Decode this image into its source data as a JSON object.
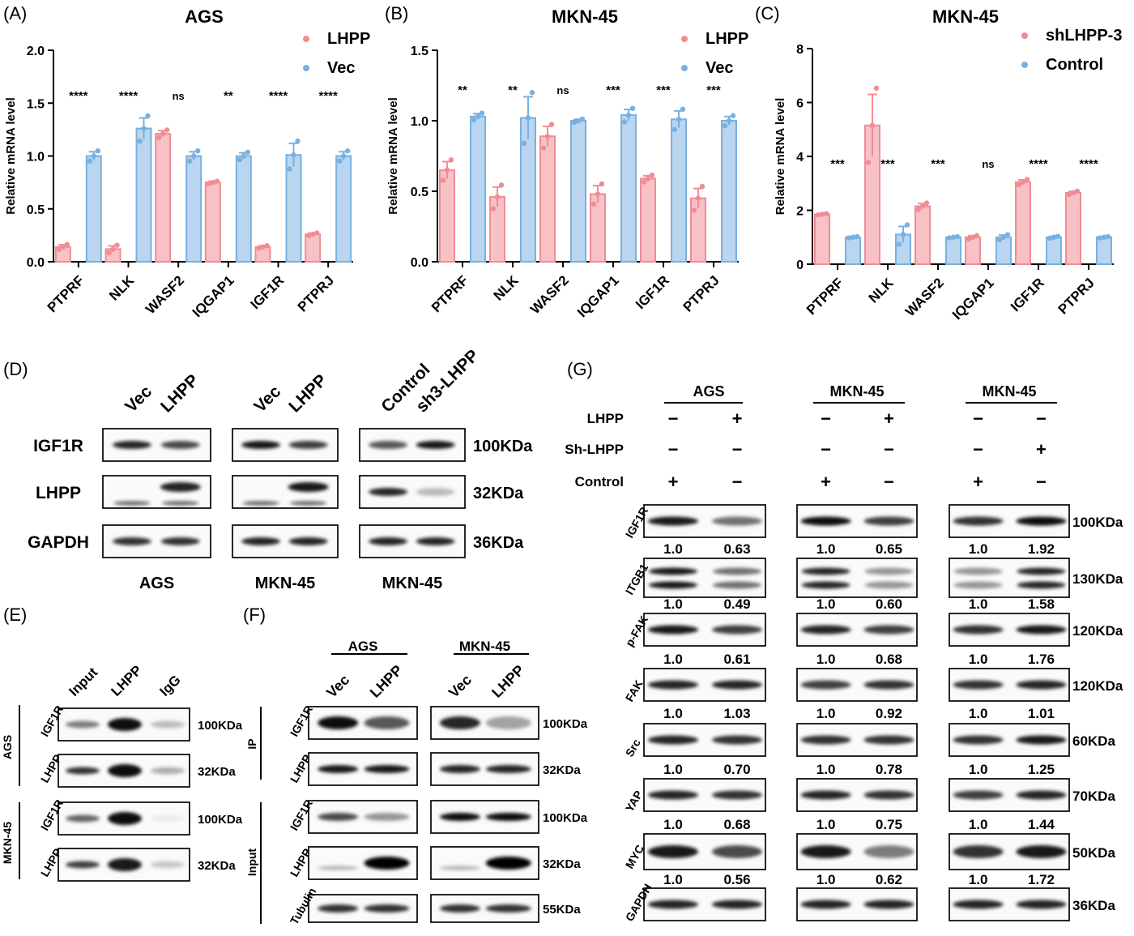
{
  "panels": {
    "A": {
      "letter": "(A)",
      "title": "AGS"
    },
    "B": {
      "letter": "(B)",
      "title": "MKN-45"
    },
    "C": {
      "letter": "(C)",
      "title": "MKN-45"
    },
    "D": {
      "letter": "(D)"
    },
    "E": {
      "letter": "(E)"
    },
    "F": {
      "letter": "(F)"
    },
    "G": {
      "letter": "(G)"
    }
  },
  "chart_data": [
    {
      "type": "bar",
      "title": "AGS",
      "ylabel": "Relative mRNA level",
      "ylim": [
        0,
        2.0
      ],
      "yticks": [
        "0.0",
        "0.5",
        "1.0",
        "1.5",
        "2.0"
      ],
      "categories": [
        "PTPRF",
        "NLK",
        "WASF2",
        "IQGAP1",
        "IGF1R",
        "PTPRJ"
      ],
      "series": [
        {
          "name": "LHPP",
          "color": "#f08c95",
          "values": [
            0.14,
            0.12,
            1.21,
            0.75,
            0.14,
            0.26
          ],
          "errors": [
            0.02,
            0.03,
            0.03,
            0.01,
            0.01,
            0.01
          ]
        },
        {
          "name": "Vec",
          "color": "#79b1e0",
          "values": [
            1.0,
            1.26,
            1.0,
            1.0,
            1.01,
            1.0
          ],
          "errors": [
            0.04,
            0.1,
            0.04,
            0.03,
            0.11,
            0.04
          ]
        }
      ],
      "significance": [
        "****",
        "****",
        "ns",
        "**",
        "****",
        "****"
      ],
      "legend": "top-right"
    },
    {
      "type": "bar",
      "title": "MKN-45",
      "ylabel": "Relative mRNA level",
      "ylim": [
        0,
        1.5
      ],
      "yticks": [
        "0.0",
        "0.5",
        "1.0",
        "1.5"
      ],
      "categories": [
        "PTPRF",
        "NLK",
        "WASF2",
        "IQGAP1",
        "IGF1R",
        "PTPRJ"
      ],
      "series": [
        {
          "name": "LHPP",
          "color": "#f08c95",
          "values": [
            0.65,
            0.46,
            0.89,
            0.48,
            0.59,
            0.45
          ],
          "errors": [
            0.06,
            0.07,
            0.07,
            0.06,
            0.02,
            0.07
          ]
        },
        {
          "name": "Vec",
          "color": "#79b1e0",
          "values": [
            1.03,
            1.02,
            1.0,
            1.04,
            1.01,
            1.0
          ],
          "errors": [
            0.02,
            0.15,
            0.01,
            0.04,
            0.06,
            0.03
          ]
        }
      ],
      "significance": [
        "**",
        "**",
        "ns",
        "***",
        "***",
        "***"
      ],
      "legend": "top-right"
    },
    {
      "type": "bar",
      "title": "MKN-45",
      "ylabel": "Relative mRNA level",
      "ylim": [
        0,
        8
      ],
      "yticks": [
        "0",
        "2",
        "4",
        "6",
        "8"
      ],
      "categories": [
        "PTPRF",
        "NLK",
        "WASF2",
        "IQGAP1",
        "IGF1R",
        "PTPRJ"
      ],
      "series": [
        {
          "name": "shLHPP-3",
          "color": "#f08c95",
          "values": [
            1.85,
            5.15,
            2.15,
            1.0,
            3.05,
            2.65
          ],
          "errors": [
            0.02,
            1.15,
            0.1,
            0.05,
            0.08,
            0.05
          ]
        },
        {
          "name": "Control",
          "color": "#79b1e0",
          "values": [
            1.0,
            1.1,
            1.0,
            1.0,
            1.0,
            1.0
          ],
          "errors": [
            0.02,
            0.3,
            0.02,
            0.08,
            0.03,
            0.02
          ]
        }
      ],
      "significance": [
        "***",
        "***",
        "***",
        "ns",
        "****",
        "****"
      ],
      "legend": "top-right"
    }
  ],
  "blotD": {
    "groups": [
      {
        "lanes": [
          "Vec",
          "LHPP"
        ],
        "caption": "AGS"
      },
      {
        "lanes": [
          "Vec",
          "LHPP"
        ],
        "caption": "MKN-45"
      },
      {
        "lanes": [
          "Control",
          "sh3-LHPP"
        ],
        "caption": "MKN-45"
      }
    ],
    "rows": [
      "IGF1R",
      "LHPP",
      "GAPDH"
    ],
    "kda": [
      "100KDa",
      "32KDa",
      "36KDa"
    ]
  },
  "blotE": {
    "lanes": [
      "Input",
      "LHPP",
      "IgG"
    ],
    "groups": [
      "AGS",
      "MKN-45"
    ],
    "rows": [
      "IGF1R",
      "LHPP",
      "IGF1R",
      "LHPP"
    ],
    "kda": [
      "100KDa",
      "32KDa",
      "100KDa",
      "32KDa"
    ]
  },
  "blotF": {
    "groups": [
      "AGS",
      "MKN-45"
    ],
    "lanes": [
      "Vec",
      "LHPP",
      "Vec",
      "LHPP"
    ],
    "sections": [
      "IP",
      "Input"
    ],
    "rows": [
      "IGF1R",
      "LHPP",
      "IGF1R",
      "LHPP",
      "Tubulin"
    ],
    "kda": [
      "100KDa",
      "32KDa",
      "100KDa",
      "32KDa",
      "55KDa"
    ]
  },
  "blotG": {
    "groups": [
      "AGS",
      "MKN-45",
      "MKN-45"
    ],
    "conditions": [
      "LHPP",
      "Sh-LHPP",
      "Control"
    ],
    "signs": [
      [
        [
          "−",
          "+"
        ],
        [
          "−",
          "+"
        ],
        [
          "−",
          "−"
        ]
      ],
      [
        [
          "−",
          "−"
        ],
        [
          "−",
          "−"
        ],
        [
          "−",
          "+"
        ]
      ],
      [
        [
          "+",
          "−"
        ],
        [
          "+",
          "−"
        ],
        [
          "+",
          "−"
        ]
      ]
    ],
    "rows": [
      "IGF1R",
      "ITGB1",
      "p-FAK",
      "FAK",
      "Src",
      "YAP",
      "MYC",
      "GAPDH"
    ],
    "kda": [
      "100KDa",
      "130KDa",
      "120KDa",
      "120KDa",
      "60KDa",
      "70KDa",
      "50KDa",
      "36KDa"
    ],
    "quant": [
      [
        [
          "1.0",
          "0.63"
        ],
        [
          "1.0",
          "0.65"
        ],
        [
          "1.0",
          "1.92"
        ]
      ],
      [
        [
          "1.0",
          "0.49"
        ],
        [
          "1.0",
          "0.60"
        ],
        [
          "1.0",
          "1.58"
        ]
      ],
      [
        [
          "1.0",
          "0.61"
        ],
        [
          "1.0",
          "0.68"
        ],
        [
          "1.0",
          "1.76"
        ]
      ],
      [
        [
          "1.0",
          "1.03"
        ],
        [
          "1.0",
          "0.92"
        ],
        [
          "1.0",
          "1.01"
        ]
      ],
      [
        [
          "1.0",
          "0.70"
        ],
        [
          "1.0",
          "0.78"
        ],
        [
          "1.0",
          "1.25"
        ]
      ],
      [
        [
          "1.0",
          "0.68"
        ],
        [
          "1.0",
          "0.75"
        ],
        [
          "1.0",
          "1.44"
        ]
      ],
      [
        [
          "1.0",
          "0.56"
        ],
        [
          "1.0",
          "0.62"
        ],
        [
          "1.0",
          "1.72"
        ]
      ]
    ]
  }
}
